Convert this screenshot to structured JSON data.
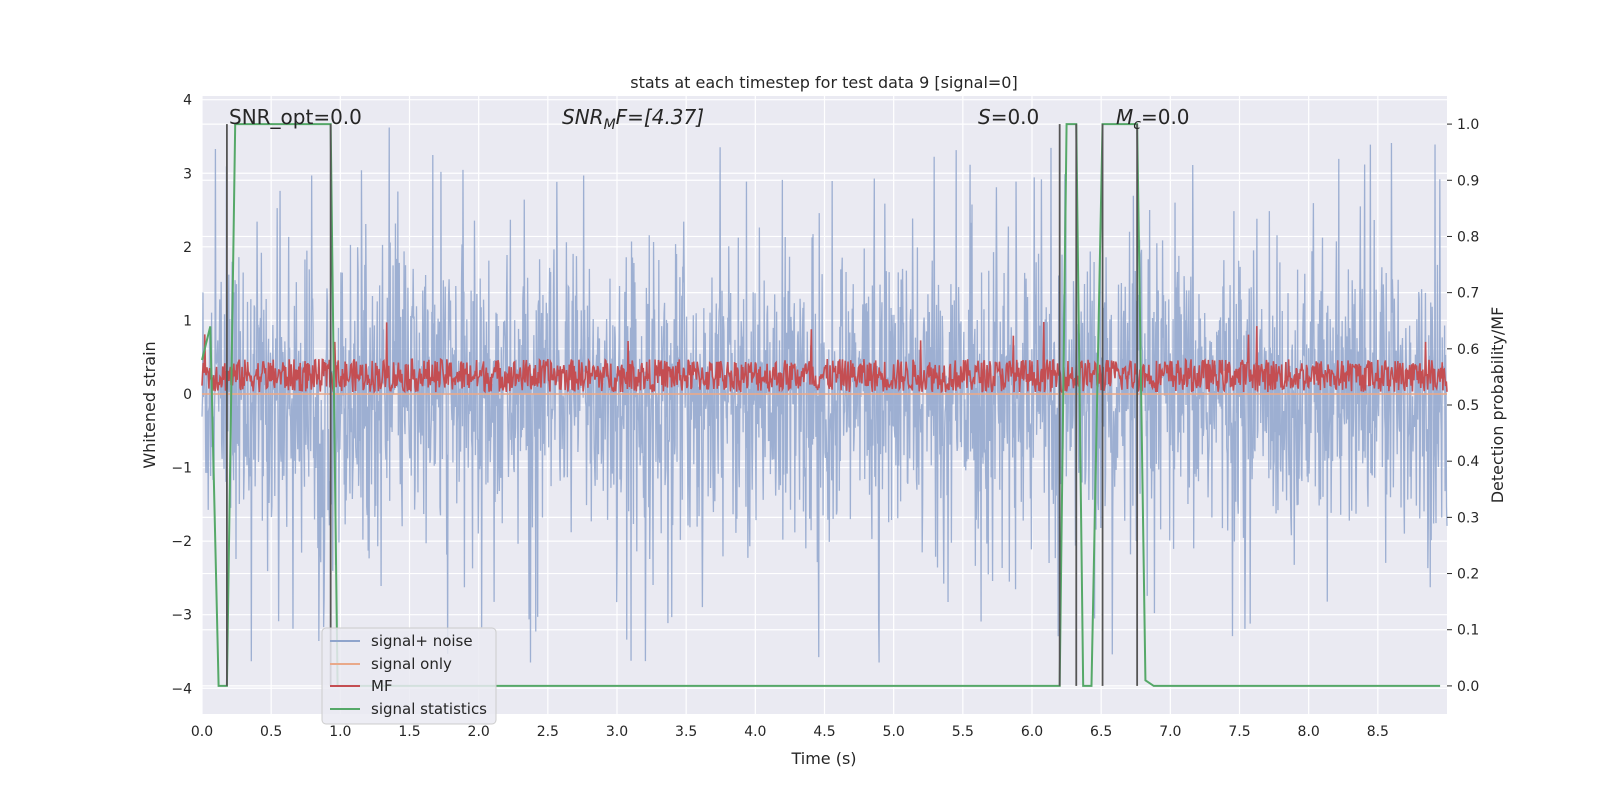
{
  "chart_data": {
    "type": "line",
    "title": "stats at each timestep for test data 9 [signal=0]",
    "xlabel": "Time (s)",
    "ylabel": "Whitened strain",
    "ylabel_right": "Detection probability/MF",
    "xlim": [
      0,
      9.0
    ],
    "ylim": [
      -4.35,
      4.05
    ],
    "ylim_right": [
      -0.05,
      1.05
    ],
    "x_ticks": [
      "0.0",
      "0.5",
      "1.0",
      "1.5",
      "2.0",
      "2.5",
      "3.0",
      "3.5",
      "4.0",
      "4.5",
      "5.0",
      "5.5",
      "6.0",
      "6.5",
      "7.0",
      "7.5",
      "8.0",
      "8.5"
    ],
    "y_ticks": [
      "−4",
      "−3",
      "−2",
      "−1",
      "0",
      "1",
      "2",
      "3",
      "4"
    ],
    "y_ticks_right": [
      "0.0",
      "0.1",
      "0.2",
      "0.3",
      "0.4",
      "0.5",
      "0.6",
      "0.7",
      "0.8",
      "0.9",
      "1.0"
    ],
    "annotations": {
      "snr_opt": "SNR_opt=0.0",
      "snr_mf_var": "SNR",
      "snr_mf_sub": "M",
      "snr_mf_tail": "F=[4.37]",
      "s_var": "S",
      "s_tail": "=0.0",
      "mc_var": "M",
      "mc_sub": "c",
      "mc_tail": "=0.0"
    },
    "vertical_lines_x": [
      0.18,
      0.93,
      6.2,
      6.32,
      6.51,
      6.76
    ],
    "legend": {
      "position": "lower-left",
      "entries": [
        {
          "label": "signal+ noise",
          "color": "#8fa4cc"
        },
        {
          "label": "signal only",
          "color": "#e9a98a"
        },
        {
          "label": "MF",
          "color": "#c44e52"
        },
        {
          "label": "signal statistics",
          "color": "#55a868"
        }
      ]
    },
    "series": [
      {
        "name": "signal statistics",
        "axis": "right",
        "color": "#55a868",
        "x": [
          0.0,
          0.06,
          0.12,
          0.18,
          0.24,
          0.26,
          0.93,
          0.98,
          1.0,
          6.2,
          6.25,
          6.32,
          6.37,
          6.43,
          6.51,
          6.59,
          6.76,
          6.82,
          6.88,
          8.95
        ],
        "y": [
          0.58,
          0.64,
          0.0,
          0.0,
          1.0,
          1.0,
          1.0,
          0.0,
          0.0,
          0.0,
          1.0,
          1.0,
          0.0,
          0.0,
          1.0,
          1.0,
          1.0,
          0.01,
          0.0,
          0.0
        ]
      }
    ],
    "noise_series": {
      "name": "signal+ noise",
      "axis": "left",
      "color": "#8fa4cc",
      "typical_amplitude": 1.6,
      "peak_amplitude": 3.65
    },
    "mf_series": {
      "name": "MF",
      "axis": "left",
      "color": "#c44e52",
      "baseline": 0.25,
      "amplitude": 0.25,
      "peak": 0.98
    },
    "signal_only_series": {
      "name": "signal only",
      "axis": "left",
      "color": "#e9a98a",
      "value": 0.0
    }
  }
}
